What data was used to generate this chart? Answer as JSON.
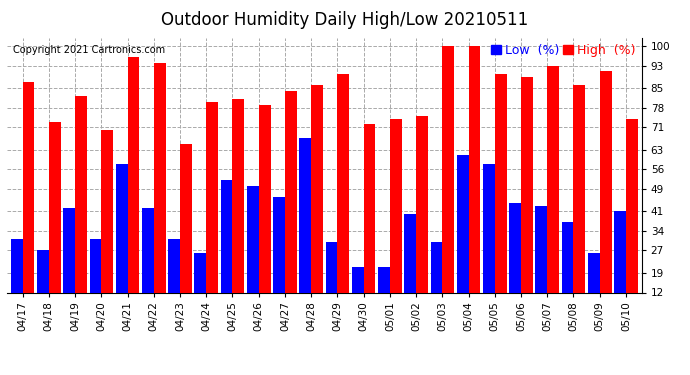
{
  "title": "Outdoor Humidity Daily High/Low 20210511",
  "copyright": "Copyright 2021 Cartronics.com",
  "yticks": [
    12,
    19,
    27,
    34,
    41,
    49,
    56,
    63,
    71,
    78,
    85,
    93,
    100
  ],
  "ymin": 12,
  "ymax": 103,
  "background_color": "#ffffff",
  "grid_color": "#aaaaaa",
  "categories": [
    "04/17",
    "04/18",
    "04/19",
    "04/20",
    "04/21",
    "04/22",
    "04/23",
    "04/24",
    "04/25",
    "04/26",
    "04/27",
    "04/28",
    "04/29",
    "04/30",
    "05/01",
    "05/02",
    "05/03",
    "05/04",
    "05/05",
    "05/06",
    "05/07",
    "05/08",
    "05/09",
    "05/10"
  ],
  "high_values": [
    87,
    73,
    82,
    70,
    96,
    94,
    65,
    80,
    81,
    79,
    84,
    86,
    90,
    72,
    74,
    75,
    100,
    100,
    90,
    89,
    93,
    86,
    91,
    74
  ],
  "low_values": [
    31,
    27,
    42,
    31,
    58,
    42,
    31,
    26,
    52,
    50,
    46,
    67,
    30,
    21,
    21,
    40,
    30,
    61,
    58,
    44,
    43,
    37,
    26,
    41
  ],
  "high_color": "#ff0000",
  "low_color": "#0000ff",
  "bar_width": 0.45,
  "legend_low_label": "Low  (%)",
  "legend_high_label": "High  (%)",
  "title_fontsize": 12,
  "tick_fontsize": 7.5,
  "copyright_fontsize": 7,
  "legend_fontsize": 9
}
